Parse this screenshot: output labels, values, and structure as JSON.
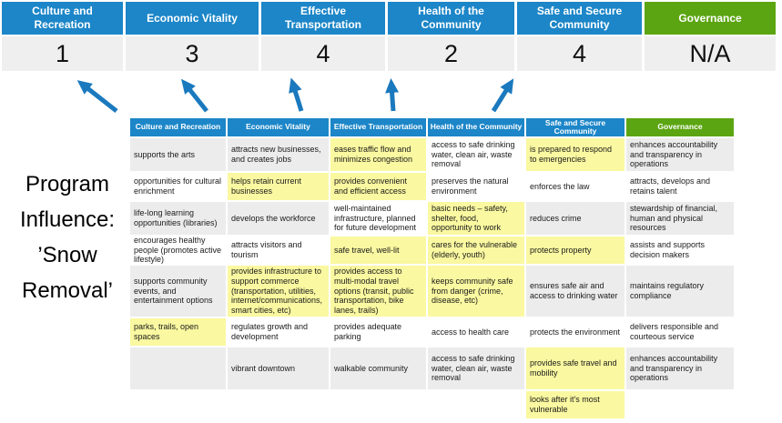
{
  "title": {
    "lines": [
      "Program",
      "Influence:",
      "’Snow",
      "Removal’"
    ],
    "text": "Program Influence: ’Snow Removal’"
  },
  "scoreboard": {
    "columns": [
      {
        "label": "Culture and Recreation",
        "score": "1",
        "color": "#1C86C8"
      },
      {
        "label": "Economic Vitality",
        "score": "3",
        "color": "#1C86C8"
      },
      {
        "label": "Effective Transportation",
        "score": "4",
        "color": "#1C86C8"
      },
      {
        "label": "Health of the Community",
        "score": "2",
        "color": "#1C86C8"
      },
      {
        "label": "Safe and Secure Community",
        "score": "4",
        "color": "#1C86C8"
      },
      {
        "label": "Governance",
        "score": "N/A",
        "color": "#5CA512"
      }
    ]
  },
  "matrix": {
    "headers": [
      {
        "label": "Culture and Recreation",
        "color": "#1C86C8"
      },
      {
        "label": "Economic Vitality",
        "color": "#1C86C8"
      },
      {
        "label": "Effective Transportation",
        "color": "#1C86C8"
      },
      {
        "label": "Health of the Community",
        "color": "#1C86C8"
      },
      {
        "label": "Safe and Secure Community",
        "color": "#1C86C8"
      },
      {
        "label": "Governance",
        "color": "#5CA512"
      }
    ],
    "rows": [
      {
        "cells": [
          {
            "t": "supports the arts",
            "bg": "g"
          },
          {
            "t": "attracts new businesses, and creates jobs",
            "bg": "g"
          },
          {
            "t": "eases traffic flow and minimizes congestion",
            "bg": "y"
          },
          {
            "t": "access to safe drinking water, clean air, waste removal",
            "bg": "w"
          },
          {
            "t": "is prepared to respond to emergencies",
            "bg": "y"
          },
          {
            "t": "enhances accountability and transparency in operations",
            "bg": "g"
          }
        ]
      },
      {
        "cells": [
          {
            "t": "opportunities for cultural enrichment",
            "bg": "w"
          },
          {
            "t": "helps retain current businesses",
            "bg": "y"
          },
          {
            "t": "provides convenient and efficient access",
            "bg": "y"
          },
          {
            "t": "preserves the natural environment",
            "bg": "w"
          },
          {
            "t": "enforces the law",
            "bg": "w"
          },
          {
            "t": "attracts, develops and retains talent",
            "bg": "w"
          }
        ]
      },
      {
        "cells": [
          {
            "t": "life-long learning opportunities (libraries)",
            "bg": "g"
          },
          {
            "t": "develops the workforce",
            "bg": "g"
          },
          {
            "t": "well-maintained infrastructure, planned for future development",
            "bg": "w"
          },
          {
            "t": "basic needs – safety, shelter, food, opportunity to work",
            "bg": "y"
          },
          {
            "t": "reduces crime",
            "bg": "g"
          },
          {
            "t": "stewardship of financial, human and physical resources",
            "bg": "g"
          }
        ]
      },
      {
        "cells": [
          {
            "t": "encourages healthy people (promotes active lifestyle)",
            "bg": "w"
          },
          {
            "t": "attracts visitors and tourism",
            "bg": "w"
          },
          {
            "t": "safe travel, well-lit",
            "bg": "y"
          },
          {
            "t": "cares for the vulnerable (elderly, youth)",
            "bg": "y"
          },
          {
            "t": "protects property",
            "bg": "y"
          },
          {
            "t": "assists and supports decision makers",
            "bg": "w"
          }
        ]
      },
      {
        "cells": [
          {
            "t": "supports community events, and entertainment options",
            "bg": "g"
          },
          {
            "t": "provides infrastructure to support commerce (transportation, utilities, internet/communications, smart cities, etc)",
            "bg": "y"
          },
          {
            "t": "provides access to multi-modal travel options (transit, public transportation, bike lanes, trails)",
            "bg": "y"
          },
          {
            "t": "keeps community safe from danger (crime, disease, etc)",
            "bg": "y"
          },
          {
            "t": "ensures safe air and access to drinking water",
            "bg": "g"
          },
          {
            "t": "maintains regulatory compliance",
            "bg": "g"
          }
        ]
      },
      {
        "cells": [
          {
            "t": "parks, trails, open spaces",
            "bg": "y"
          },
          {
            "t": "regulates growth and development",
            "bg": "w"
          },
          {
            "t": "provides adequate parking",
            "bg": "w"
          },
          {
            "t": "access to health care",
            "bg": "w"
          },
          {
            "t": "protects the environment",
            "bg": "w"
          },
          {
            "t": "delivers responsible and courteous service",
            "bg": "w"
          }
        ]
      },
      {
        "cells": [
          {
            "t": "",
            "bg": "g"
          },
          {
            "t": "vibrant downtown",
            "bg": "g"
          },
          {
            "t": "walkable community",
            "bg": "g"
          },
          {
            "t": "access to safe drinking water, clean air, waste removal",
            "bg": "g"
          },
          {
            "t": "provides safe travel and mobility",
            "bg": "y"
          },
          {
            "t": "enhances accountability and transparency in operations",
            "bg": "g"
          }
        ]
      },
      {
        "cells": [
          {
            "t": "",
            "bg": "w"
          },
          {
            "t": "",
            "bg": "w"
          },
          {
            "t": "",
            "bg": "w"
          },
          {
            "t": "",
            "bg": "w"
          },
          {
            "t": "looks after it's most vulnerable",
            "bg": "y"
          },
          {
            "t": "",
            "bg": "w"
          }
        ]
      }
    ]
  },
  "colors": {
    "header_blue": "#1C86C8",
    "header_green": "#5CA512",
    "highlight_yellow": "#FAF8A0",
    "band_gray": "#ECECEC",
    "score_bg": "#EFEFEF",
    "arrow_blue": "#1B79BE",
    "text": "#1A1A1A"
  }
}
